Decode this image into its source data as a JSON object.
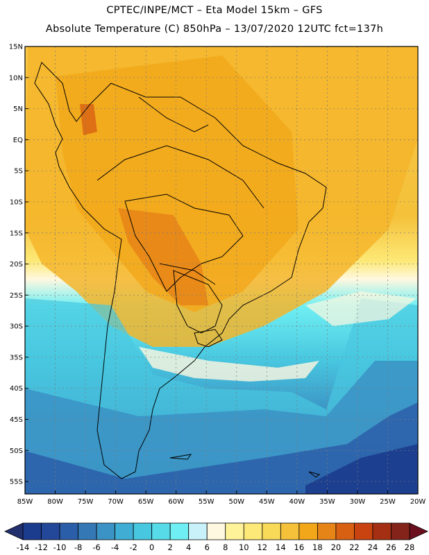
{
  "header": {
    "title": "CPTEC/INPE/MCT –  Eta Model 15km – GFS",
    "subtitle": "Absolute Temperature (C) 850hPa – 13/07/2020 12UTC fct=137h"
  },
  "map": {
    "lat_labels": [
      "15N",
      "10N",
      "5N",
      "EQ",
      "5S",
      "10S",
      "15S",
      "20S",
      "25S",
      "30S",
      "35S",
      "40S",
      "45S",
      "50S",
      "55S"
    ],
    "lon_labels": [
      "85W",
      "80W",
      "75W",
      "70W",
      "65W",
      "60W",
      "55W",
      "50W",
      "45W",
      "40W",
      "35W",
      "30W",
      "25W",
      "20W"
    ],
    "lat_range": [
      15,
      -57
    ],
    "lon_range": [
      -85,
      -20
    ],
    "grid": true
  },
  "colorbar": {
    "values": [
      "-14",
      "-12",
      "-10",
      "-8",
      "-6",
      "-4",
      "-2",
      "0",
      "2",
      "4",
      "6",
      "8",
      "10",
      "12",
      "14",
      "16",
      "18",
      "20",
      "22",
      "24",
      "26",
      "28"
    ],
    "colors": [
      "#1b3b8c",
      "#23489a",
      "#2b5ea8",
      "#3479b6",
      "#3b92c4",
      "#40aed4",
      "#48c7e0",
      "#58dbe9",
      "#6feff3",
      "#c9f1f9",
      "#fff8e0",
      "#fff39a",
      "#fde977",
      "#f8d958",
      "#f5c13a",
      "#f2a71a",
      "#e68418",
      "#d86012",
      "#c8430f",
      "#a52f12",
      "#84231a"
    ]
  }
}
